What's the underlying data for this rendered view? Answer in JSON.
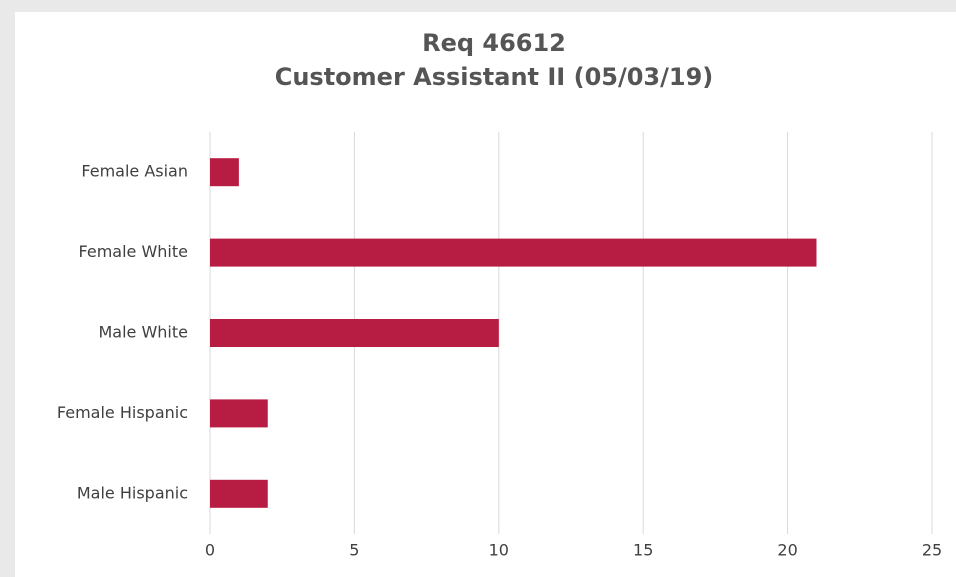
{
  "chart_data": {
    "type": "bar",
    "orientation": "horizontal",
    "title": [
      "Req 46612",
      "Customer Assistant II (05/03/19)"
    ],
    "categories": [
      "Female Asian",
      "Female White",
      "Male White",
      "Female Hispanic",
      "Male Hispanic"
    ],
    "values": [
      1,
      21,
      10,
      2,
      2
    ],
    "color": "#b71c42",
    "xlim": [
      0,
      25
    ],
    "xticks": [
      0,
      5,
      10,
      15,
      20,
      25
    ],
    "grid": true
  }
}
